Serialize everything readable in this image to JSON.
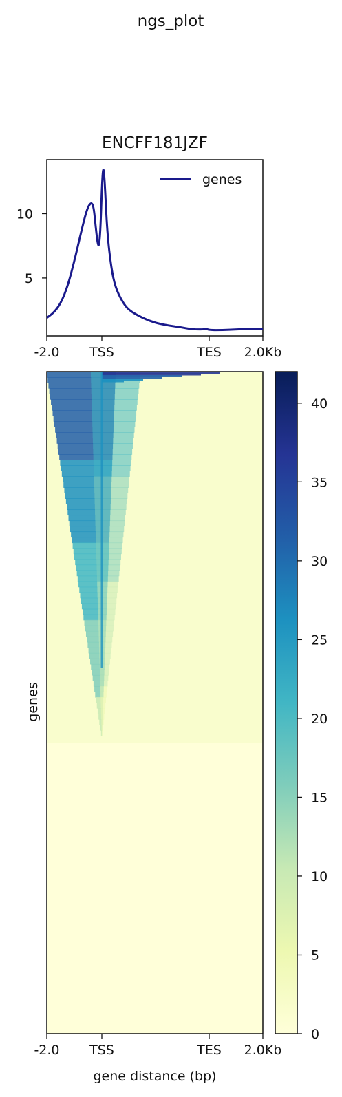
{
  "figure": {
    "suptitle": "ngs_plot"
  },
  "chart_data": [
    {
      "type": "line",
      "title": "ENCFF181JZF",
      "xlabel": "",
      "ylabel": "",
      "x_ticks": [
        "-2.0",
        "TSS",
        "TES",
        "2.0Kb"
      ],
      "y_ticks": [
        5,
        10
      ],
      "ylim": [
        0.5,
        14.2
      ],
      "legend": {
        "position": "top-right",
        "entries": [
          "genes"
        ]
      },
      "series": [
        {
          "name": "genes",
          "color": "#1a1a8c",
          "points": [
            [
              0.0,
              1.9
            ],
            [
              0.05,
              2.3
            ],
            [
              0.1,
              3.0
            ],
            [
              0.15,
              4.3
            ],
            [
              0.2,
              6.3
            ],
            [
              0.25,
              8.6
            ],
            [
              0.29,
              10.3
            ],
            [
              0.32,
              10.9
            ],
            [
              0.34,
              10.6
            ],
            [
              0.355,
              9.0
            ],
            [
              0.37,
              7.6
            ],
            [
              0.38,
              7.5
            ],
            [
              0.39,
              8.8
            ],
            [
              0.4,
              12.0
            ],
            [
              0.41,
              13.7
            ],
            [
              0.42,
              12.8
            ],
            [
              0.44,
              8.5
            ],
            [
              0.47,
              5.8
            ],
            [
              0.5,
              4.3
            ],
            [
              0.55,
              3.2
            ],
            [
              0.6,
              2.5
            ],
            [
              0.7,
              1.9
            ],
            [
              0.8,
              1.5
            ],
            [
              0.9,
              1.3
            ],
            [
              1.0,
              1.15
            ],
            [
              1.05,
              1.05
            ],
            [
              1.1,
              1.0
            ],
            [
              1.15,
              1.0
            ],
            [
              1.18,
              1.05
            ],
            [
              1.2,
              0.95
            ],
            [
              1.3,
              0.95
            ],
            [
              1.4,
              1.0
            ],
            [
              1.5,
              1.05
            ],
            [
              1.6,
              1.05
            ]
          ]
        }
      ]
    },
    {
      "type": "heatmap",
      "title": "",
      "xlabel": "gene distance (bp)",
      "ylabel": "genes",
      "x_ticks": [
        "-2.0",
        "TSS",
        "TES",
        "2.0Kb"
      ],
      "colormap": "YlGnBu",
      "colorbar": {
        "min": 0,
        "max": 42,
        "ticks": [
          0,
          5,
          10,
          15,
          20,
          25,
          30,
          35,
          40
        ]
      }
    }
  ]
}
